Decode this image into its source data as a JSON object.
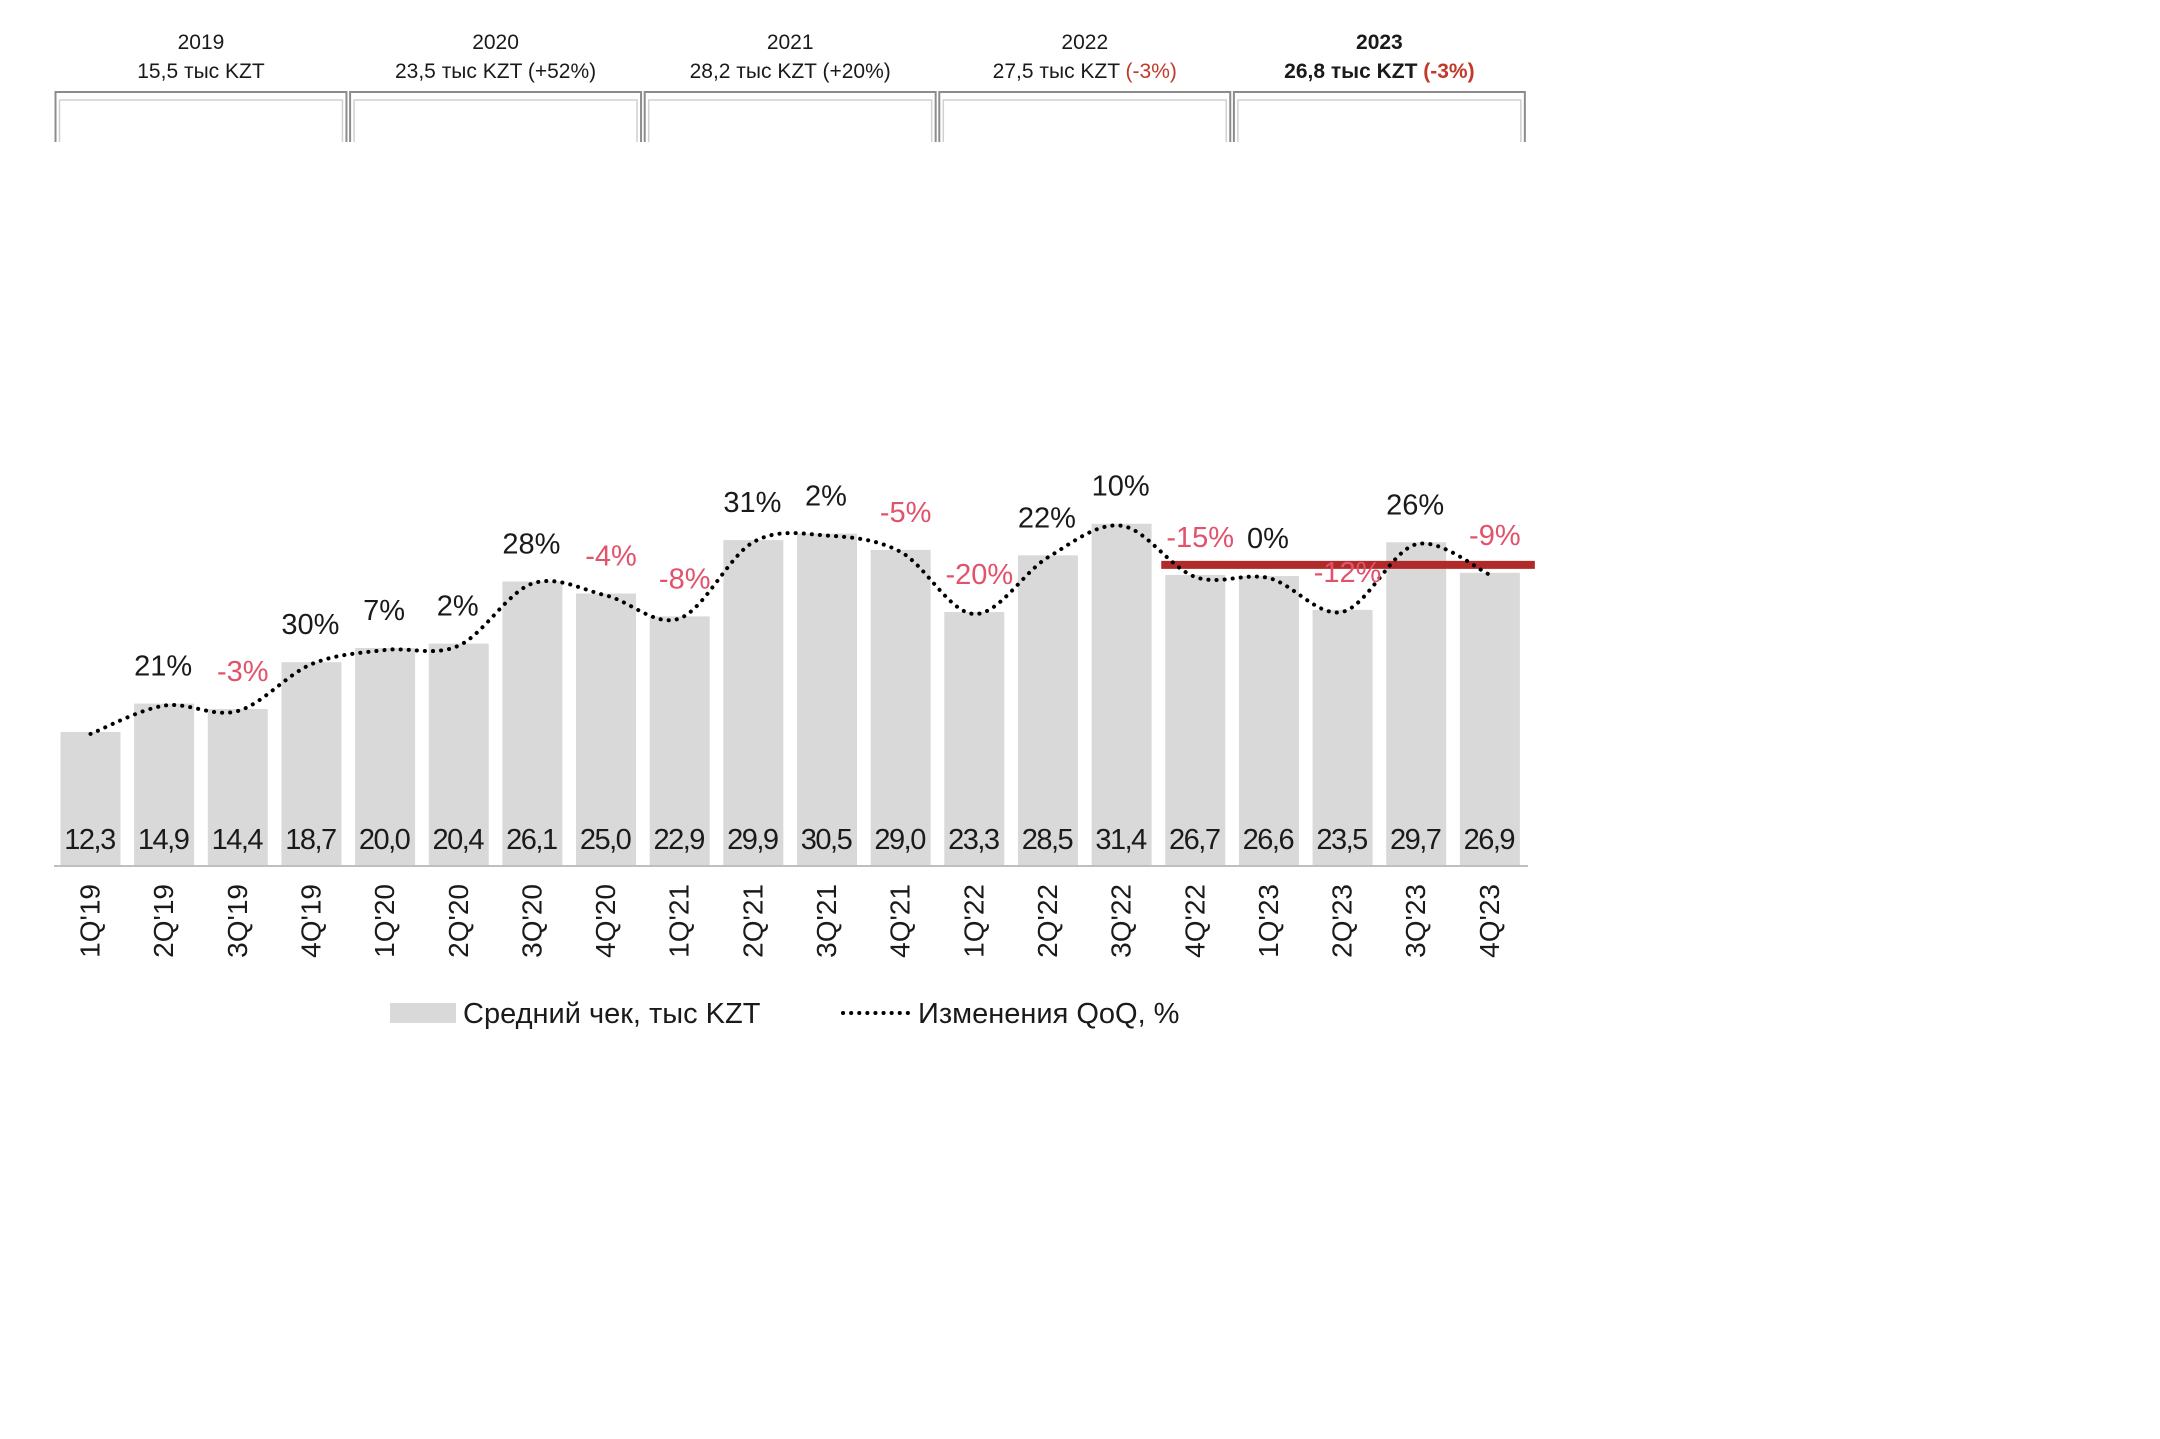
{
  "colors": {
    "bar": "#d9d9d9",
    "text": "#1a1a1a",
    "negative": "#e2526b",
    "header_negative": "#c0392b",
    "average_line": "#b02a2a",
    "bracket": "#8c8c8c",
    "axis": "#bfbfbf",
    "dots": "#000000"
  },
  "year_headers": [
    {
      "year": "2019",
      "value": "15,5 тыс KZT",
      "change": "",
      "bold": false,
      "change_negative": false
    },
    {
      "year": "2020",
      "value": "23,5 тыс KZT",
      "change": "(+52%)",
      "bold": false,
      "change_negative": false
    },
    {
      "year": "2021",
      "value": "28,2 тыс KZT",
      "change": "(+20%)",
      "bold": false,
      "change_negative": false
    },
    {
      "year": "2022",
      "value": "27,5 тыс KZT",
      "change": "(-3%)",
      "bold": false,
      "change_negative": true
    },
    {
      "year": "2023",
      "value": "26,8 тыс KZT",
      "change": "(-3%)",
      "bold": true,
      "change_negative": true
    }
  ],
  "legend": {
    "bars": "Средний чек, тыс KZT",
    "line": "Изменения QoQ, %"
  },
  "chart_data": {
    "type": "bar",
    "categories": [
      "1Q'19",
      "2Q'19",
      "3Q'19",
      "4Q'19",
      "1Q'20",
      "2Q'20",
      "3Q'20",
      "4Q'20",
      "1Q'21",
      "2Q'21",
      "3Q'21",
      "4Q'21",
      "1Q'22",
      "2Q'22",
      "3Q'22",
      "4Q'22",
      "1Q'23",
      "2Q'23",
      "3Q'23",
      "4Q'23"
    ],
    "series": [
      {
        "name": "Средний чек, тыс KZT",
        "type": "bar",
        "values": [
          12.3,
          14.9,
          14.4,
          18.7,
          20.0,
          20.4,
          26.1,
          25.0,
          22.9,
          29.9,
          30.5,
          29.0,
          23.3,
          28.5,
          31.4,
          26.7,
          26.6,
          23.5,
          29.7,
          26.9
        ],
        "labels": [
          "12,3",
          "14,9",
          "14,4",
          "18,7",
          "20,0",
          "20,4",
          "26,1",
          "25,0",
          "22,9",
          "29,9",
          "30,5",
          "29,0",
          "23,3",
          "28,5",
          "31,4",
          "26,7",
          "26,6",
          "23,5",
          "29,7",
          "26,9"
        ]
      },
      {
        "name": "Изменения QoQ, %",
        "type": "line",
        "style": "dotted",
        "values": [
          null,
          21,
          -3,
          30,
          7,
          2,
          28,
          -4,
          -8,
          31,
          2,
          -5,
          -20,
          22,
          10,
          -15,
          0,
          -12,
          26,
          -9
        ],
        "labels": [
          "",
          "21%",
          "-3%",
          "30%",
          "7%",
          "2%",
          "28%",
          "-4%",
          "-8%",
          "31%",
          "2%",
          "-5%",
          "-20%",
          "22%",
          "10%",
          "-15%",
          "0%",
          "-12%",
          "26%",
          "-9%"
        ]
      }
    ],
    "reference_line": {
      "value": 26.8,
      "from_category": "4Q'22",
      "to_category": "4Q'23"
    },
    "ylim": [
      0,
      42
    ],
    "grid": false,
    "legend_position": "bottom",
    "xlabel": "",
    "ylabel": "",
    "title": ""
  }
}
